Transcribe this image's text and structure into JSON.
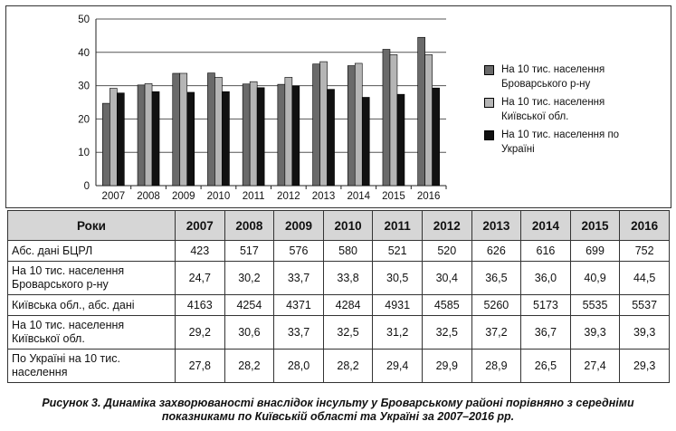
{
  "chart_data": {
    "type": "bar",
    "categories": [
      "2007",
      "2008",
      "2009",
      "2010",
      "2011",
      "2012",
      "2013",
      "2014",
      "2015",
      "2016"
    ],
    "series": [
      {
        "name": "На 10 тис. населення Броварського р-ну",
        "color": "#6a6a6a",
        "values": [
          24.7,
          30.2,
          33.7,
          33.8,
          30.5,
          30.4,
          36.5,
          36.0,
          40.9,
          44.5
        ]
      },
      {
        "name": "На 10 тис. населення Київської обл.",
        "color": "#b5b5b5",
        "values": [
          29.2,
          30.6,
          33.7,
          32.5,
          31.2,
          32.5,
          37.2,
          36.7,
          39.3,
          39.3
        ]
      },
      {
        "name": "На 10 тис. населення по Україні",
        "color": "#111111",
        "values": [
          27.8,
          28.2,
          28.0,
          28.2,
          29.4,
          29.9,
          28.9,
          26.5,
          27.4,
          29.3
        ]
      }
    ],
    "ylim": [
      0,
      50
    ],
    "yticks": [
      "0",
      "10",
      "20",
      "30",
      "40",
      "50"
    ],
    "grid": true,
    "legend_position": "right"
  },
  "table": {
    "header": [
      "Роки",
      "2007",
      "2008",
      "2009",
      "2010",
      "2011",
      "2012",
      "2013",
      "2014",
      "2015",
      "2016"
    ],
    "rows": [
      {
        "label": "Абс. дані БЦРЛ",
        "values": [
          "423",
          "517",
          "576",
          "580",
          "521",
          "520",
          "626",
          "616",
          "699",
          "752"
        ]
      },
      {
        "label": "На 10 тис. населення Броварського р-ну",
        "values": [
          "24,7",
          "30,2",
          "33,7",
          "33,8",
          "30,5",
          "30,4",
          "36,5",
          "36,0",
          "40,9",
          "44,5"
        ]
      },
      {
        "label": "Київська обл., абс. дані",
        "values": [
          "4163",
          "4254",
          "4371",
          "4284",
          "4931",
          "4585",
          "5260",
          "5173",
          "5535",
          "5537"
        ]
      },
      {
        "label": "На 10 тис. населення Київської обл.",
        "values": [
          "29,2",
          "30,6",
          "33,7",
          "32,5",
          "31,2",
          "32,5",
          "37,2",
          "36,7",
          "39,3",
          "39,3"
        ]
      },
      {
        "label": "По Україні на 10 тис. населення",
        "values": [
          "27,8",
          "28,2",
          "28,0",
          "28,2",
          "29,4",
          "29,9",
          "28,9",
          "26,5",
          "27,4",
          "29,3"
        ]
      }
    ]
  },
  "caption": {
    "line1": "Рисунок 3. Динаміка захворюваності внаслідок інсульту у Броварському районі порівняно з середніми",
    "line2": "показниками по Київській області та Україні за 2007–2016 рр."
  }
}
